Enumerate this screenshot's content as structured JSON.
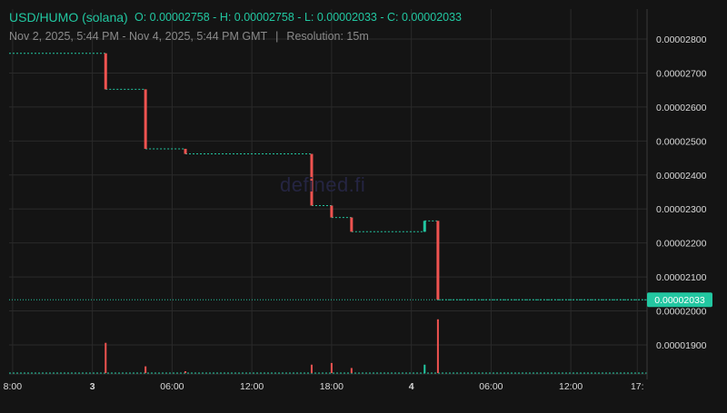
{
  "header": {
    "title": "USD/HUMO (solana)",
    "ohlc": "O: 0.00002758 - H: 0.00002758 - L: 0.00002033 - C: 0.00002033",
    "range": "Nov 2, 2025, 5:44 PM - Nov 4, 2025, 5:44 PM GMT",
    "separator": "|",
    "resolution": "Resolution: 15m"
  },
  "watermark": "defined.fi",
  "colors": {
    "background": "#141414",
    "up": "#22c7a1",
    "down": "#ef5350",
    "grid": "#2a2a2a",
    "text": "#d8d8d8",
    "subtext": "#8a8a8a"
  },
  "chart_data": {
    "type": "candlestick",
    "title": "USD/HUMO (solana)",
    "x_tick_labels": [
      "8:00",
      "3",
      "06:00",
      "12:00",
      "18:00",
      "4",
      "06:00",
      "12:00",
      "17:"
    ],
    "y_tick_labels": [
      "0.00002800",
      "0.00002700",
      "0.00002600",
      "0.00002500",
      "0.00002400",
      "0.00002300",
      "0.00002200",
      "0.00002100",
      "0.00002000",
      "0.00001900"
    ],
    "y_range": [
      1.82e-05,
      2.88e-05
    ],
    "last_price_label": "0.00002033",
    "last_price": 2.033e-05,
    "grid": true,
    "x_range": [
      "2025-11-02T17:44",
      "2025-11-04T17:44"
    ],
    "x_ticks": [
      "2025-11-02T18:00",
      "2025-11-03T00:00",
      "2025-11-03T06:00",
      "2025-11-03T12:00",
      "2025-11-03T18:00",
      "2025-11-04T00:00",
      "2025-11-04T06:00",
      "2025-11-04T12:00",
      "2025-11-04T17:00"
    ],
    "flat_segments": [
      {
        "start": "2025-11-02T17:44",
        "end": "2025-11-03T01:00",
        "price": 2.758e-05
      },
      {
        "start": "2025-11-03T01:00",
        "end": "2025-11-03T04:00",
        "price": 2.652e-05
      },
      {
        "start": "2025-11-03T04:00",
        "end": "2025-11-03T07:00",
        "price": 2.477e-05
      },
      {
        "start": "2025-11-03T07:00",
        "end": "2025-11-03T16:30",
        "price": 2.462e-05
      },
      {
        "start": "2025-11-03T16:30",
        "end": "2025-11-03T18:00",
        "price": 2.31e-05
      },
      {
        "start": "2025-11-03T18:00",
        "end": "2025-11-03T19:30",
        "price": 2.275e-05
      },
      {
        "start": "2025-11-03T19:30",
        "end": "2025-11-04T01:00",
        "price": 2.233e-05
      },
      {
        "start": "2025-11-04T01:00",
        "end": "2025-11-04T02:00",
        "price": 2.265e-05
      },
      {
        "start": "2025-11-04T02:00",
        "end": "2025-11-04T17:44",
        "price": 2.033e-05
      }
    ],
    "candles": [
      {
        "time": "2025-11-03T01:00",
        "open": 2.758e-05,
        "close": 2.652e-05,
        "high": 2.758e-05,
        "low": 2.652e-05,
        "direction": "down",
        "volume": 0.9
      },
      {
        "time": "2025-11-03T04:00",
        "open": 2.652e-05,
        "close": 2.477e-05,
        "high": 2.652e-05,
        "low": 2.477e-05,
        "direction": "down",
        "volume": 0.2
      },
      {
        "time": "2025-11-03T07:00",
        "open": 2.477e-05,
        "close": 2.462e-05,
        "high": 2.477e-05,
        "low": 2.462e-05,
        "direction": "down",
        "volume": 0.05
      },
      {
        "time": "2025-11-03T16:30",
        "open": 2.462e-05,
        "close": 2.31e-05,
        "high": 2.462e-05,
        "low": 2.31e-05,
        "direction": "down",
        "volume": 0.25
      },
      {
        "time": "2025-11-03T18:00",
        "open": 2.31e-05,
        "close": 2.275e-05,
        "high": 2.31e-05,
        "low": 2.275e-05,
        "direction": "down",
        "volume": 0.3
      },
      {
        "time": "2025-11-03T19:30",
        "open": 2.275e-05,
        "close": 2.233e-05,
        "high": 2.275e-05,
        "low": 2.233e-05,
        "direction": "down",
        "volume": 0.15
      },
      {
        "time": "2025-11-04T01:00",
        "open": 2.233e-05,
        "close": 2.265e-05,
        "high": 2.265e-05,
        "low": 2.233e-05,
        "direction": "up",
        "volume": 0.25
      },
      {
        "time": "2025-11-04T02:00",
        "open": 2.265e-05,
        "close": 2.033e-05,
        "high": 2.265e-05,
        "low": 2.033e-05,
        "direction": "down",
        "volume": 1.6
      }
    ]
  }
}
